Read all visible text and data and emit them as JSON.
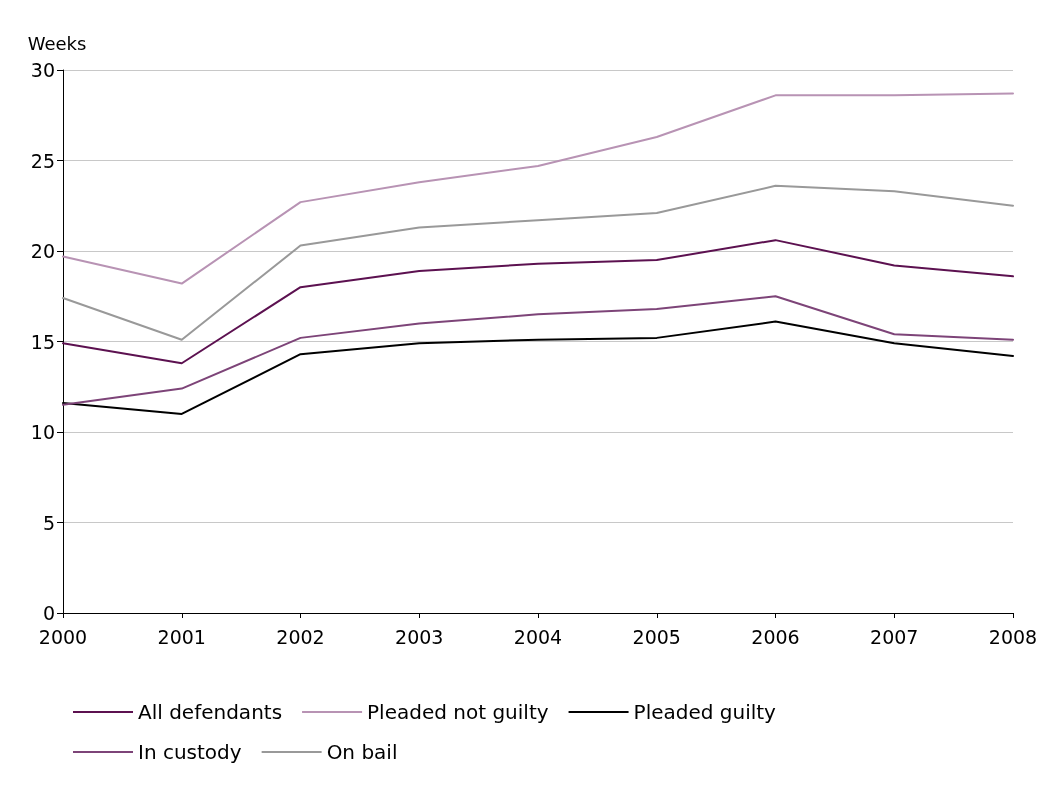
{
  "chart_data": {
    "type": "line",
    "ylabel": "Weeks",
    "categories": [
      "2000",
      "2001",
      "2002",
      "2003",
      "2004",
      "2005",
      "2006",
      "2007",
      "2008"
    ],
    "series": [
      {
        "name": "All defendants",
        "color": "#5c1150",
        "values": [
          14.9,
          13.8,
          18.0,
          18.9,
          19.3,
          19.5,
          20.6,
          19.2,
          18.6
        ]
      },
      {
        "name": "Pleaded not guilty",
        "color": "#b893b4",
        "values": [
          19.7,
          18.2,
          22.7,
          23.8,
          24.7,
          26.3,
          28.6,
          28.6,
          28.7
        ]
      },
      {
        "name": "Pleaded guilty",
        "color": "#000000",
        "values": [
          11.6,
          11.0,
          14.3,
          14.9,
          15.1,
          15.2,
          16.1,
          14.9,
          14.2
        ]
      },
      {
        "name": "In custody",
        "color": "#7d4478",
        "values": [
          11.5,
          12.4,
          15.2,
          16.0,
          16.5,
          16.8,
          17.5,
          15.4,
          15.1
        ]
      },
      {
        "name": "On bail",
        "color": "#999999",
        "values": [
          17.4,
          15.1,
          20.3,
          21.3,
          21.7,
          22.1,
          23.6,
          23.3,
          22.5
        ]
      }
    ],
    "ylim": [
      0,
      30
    ],
    "yticks": [
      0,
      5,
      10,
      15,
      20,
      25,
      30
    ],
    "grid": "y",
    "legend": "bottom",
    "marker": "none",
    "line_style": "solid"
  }
}
